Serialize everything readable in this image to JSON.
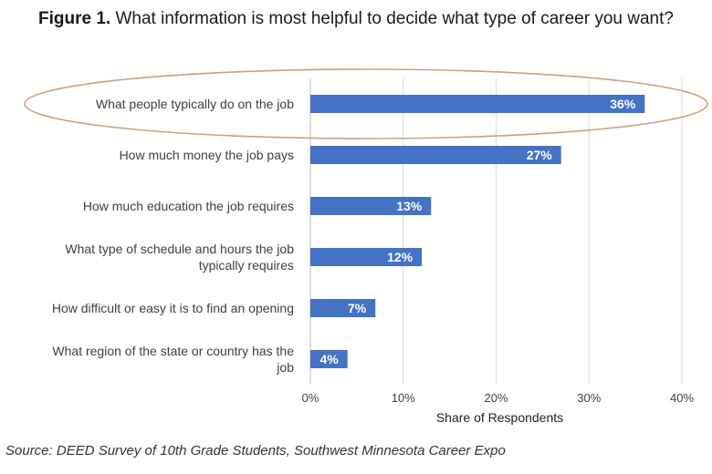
{
  "title": {
    "prefix": "Figure 1.",
    "text": " What information is most helpful to decide what type of career you want?"
  },
  "source": "Source: DEED Survey of 10th Grade Students, Southwest Minnesota Career Expo",
  "colors": {
    "bar": "#4472C4",
    "grid": "#D9D9D9",
    "highlight_ellipse": "#C9A27E"
  },
  "highlighted_category_index": 0,
  "chart_data": {
    "type": "bar",
    "orientation": "horizontal",
    "categories": [
      "What people typically do on the job",
      "How much money the job pays",
      "How much education the job requires",
      "What type of schedule and hours the job typically requires",
      "How difficult or easy it is to find an opening",
      "What region of the state or country has the job"
    ],
    "category_lines": [
      [
        "What people typically do on the job"
      ],
      [
        "How much money the job pays"
      ],
      [
        "How much education the job requires"
      ],
      [
        "What type of schedule and hours the job",
        "typically requires"
      ],
      [
        "How difficult or easy it is to find an opening"
      ],
      [
        "What region of the state or country has the",
        "job"
      ]
    ],
    "values": [
      36,
      27,
      13,
      12,
      7,
      4
    ],
    "data_labels": [
      "36%",
      "27%",
      "13%",
      "12%",
      "7%",
      "4%"
    ],
    "xlabel": "Share of Respondents",
    "ylabel": "",
    "xlim": [
      0,
      40
    ],
    "x_ticks": [
      0,
      10,
      20,
      30,
      40
    ],
    "x_tick_labels": [
      "0%",
      "10%",
      "20%",
      "30%",
      "40%"
    ],
    "grid": true,
    "legend": "none"
  }
}
